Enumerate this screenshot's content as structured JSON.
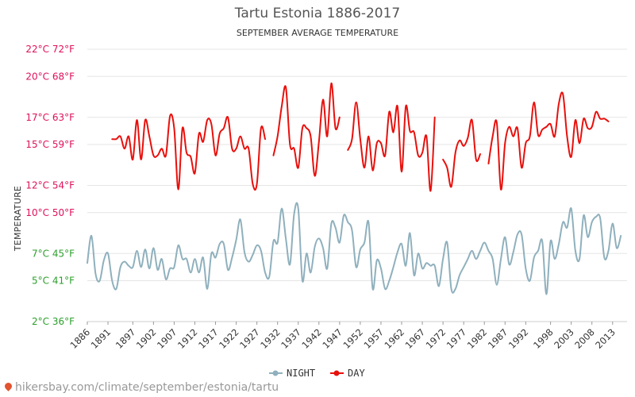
{
  "chart_data": {
    "type": "line",
    "title": "Tartu Estonia 1886-2017",
    "subtitle": "SEPTEMBER AVERAGE TEMPERATURE",
    "ylabel": "TEMPERATURE",
    "ylim": [
      2,
      22
    ],
    "y_ticks": [
      {
        "value": 2,
        "label": "2°C 36°F",
        "color": "#2ca02c"
      },
      {
        "value": 5,
        "label": "5°C 41°F",
        "color": "#2ca02c"
      },
      {
        "value": 7,
        "label": "7°C 45°F",
        "color": "#2ca02c"
      },
      {
        "value": 10,
        "label": "10°C 50°F",
        "color": "#e0105a"
      },
      {
        "value": 12,
        "label": "12°C 54°F",
        "color": "#e0105a"
      },
      {
        "value": 15,
        "label": "15°C 59°F",
        "color": "#e0105a"
      },
      {
        "value": 17,
        "label": "17°C 63°F",
        "color": "#e0105a"
      },
      {
        "value": 20,
        "label": "20°C 68°F",
        "color": "#e0105a"
      },
      {
        "value": 22,
        "label": "22°C 72°F",
        "color": "#e0105a"
      }
    ],
    "x_ticks": [
      1886,
      1891,
      1897,
      1902,
      1907,
      1912,
      1917,
      1922,
      1927,
      1932,
      1937,
      1942,
      1947,
      1952,
      1957,
      1962,
      1967,
      1972,
      1977,
      1982,
      1987,
      1992,
      1998,
      2003,
      2008,
      2013
    ],
    "grid": true,
    "legend_position": "bottom",
    "series": [
      {
        "name": "NIGHT",
        "color": "#8fb0bd",
        "points": [
          [
            1886,
            6.3
          ],
          [
            1887,
            8.3
          ],
          [
            1888,
            5.5
          ],
          [
            1889,
            5.0
          ],
          [
            1890,
            6.5
          ],
          [
            1891,
            7.0
          ],
          [
            1892,
            5.0
          ],
          [
            1893,
            4.4
          ],
          [
            1894,
            6.0
          ],
          [
            1895,
            6.4
          ],
          [
            1896,
            6.1
          ],
          [
            1897,
            6.0
          ],
          [
            1898,
            7.2
          ],
          [
            1899,
            6.0
          ],
          [
            1900,
            7.3
          ],
          [
            1901,
            5.9
          ],
          [
            1902,
            7.4
          ],
          [
            1903,
            5.8
          ],
          [
            1904,
            6.6
          ],
          [
            1905,
            5.1
          ],
          [
            1906,
            5.9
          ],
          [
            1907,
            6.0
          ],
          [
            1908,
            7.6
          ],
          [
            1909,
            6.6
          ],
          [
            1910,
            6.6
          ],
          [
            1911,
            5.6
          ],
          [
            1912,
            6.6
          ],
          [
            1913,
            5.6
          ],
          [
            1914,
            6.7
          ],
          [
            1915,
            4.4
          ],
          [
            1916,
            7.0
          ],
          [
            1917,
            6.7
          ],
          [
            1918,
            7.7
          ],
          [
            1919,
            7.7
          ],
          [
            1920,
            5.8
          ],
          [
            1921,
            6.7
          ],
          [
            1922,
            8.0
          ],
          [
            1923,
            9.5
          ],
          [
            1924,
            7.1
          ],
          [
            1925,
            6.4
          ],
          [
            1926,
            6.9
          ],
          [
            1927,
            7.6
          ],
          [
            1928,
            7.2
          ],
          [
            1929,
            5.6
          ],
          [
            1930,
            5.3
          ],
          [
            1931,
            7.9
          ],
          [
            1932,
            7.8
          ],
          [
            1933,
            10.3
          ],
          [
            1934,
            8.1
          ],
          [
            1935,
            6.2
          ],
          [
            1936,
            9.9
          ],
          [
            1937,
            10.3
          ],
          [
            1938,
            5.0
          ],
          [
            1939,
            7.0
          ],
          [
            1940,
            5.6
          ],
          [
            1941,
            7.5
          ],
          [
            1942,
            8.1
          ],
          [
            1943,
            7.4
          ],
          [
            1944,
            5.9
          ],
          [
            1945,
            9.2
          ],
          [
            1946,
            8.9
          ],
          [
            1947,
            7.8
          ],
          [
            1948,
            9.8
          ],
          [
            1949,
            9.3
          ],
          [
            1950,
            8.7
          ],
          [
            1951,
            6.0
          ],
          [
            1952,
            7.3
          ],
          [
            1953,
            7.8
          ],
          [
            1954,
            9.3
          ],
          [
            1955,
            4.4
          ],
          [
            1956,
            6.5
          ],
          [
            1957,
            5.9
          ],
          [
            1958,
            4.4
          ],
          [
            1959,
            5.0
          ],
          [
            1960,
            6.0
          ],
          [
            1961,
            7.1
          ],
          [
            1962,
            7.7
          ],
          [
            1963,
            6.1
          ],
          [
            1964,
            8.5
          ],
          [
            1965,
            5.4
          ],
          [
            1966,
            7.0
          ],
          [
            1967,
            5.9
          ],
          [
            1968,
            6.3
          ],
          [
            1969,
            6.1
          ],
          [
            1970,
            6.1
          ],
          [
            1971,
            4.6
          ],
          [
            1972,
            6.6
          ],
          [
            1973,
            7.8
          ],
          [
            1974,
            4.4
          ],
          [
            1975,
            4.4
          ],
          [
            1976,
            5.4
          ],
          [
            1977,
            6.0
          ],
          [
            1978,
            6.6
          ],
          [
            1979,
            7.2
          ],
          [
            1980,
            6.6
          ],
          [
            1981,
            7.2
          ],
          [
            1982,
            7.8
          ],
          [
            1983,
            7.2
          ],
          [
            1984,
            6.6
          ],
          [
            1985,
            4.7
          ],
          [
            1986,
            6.6
          ],
          [
            1987,
            8.2
          ],
          [
            1988,
            6.2
          ],
          [
            1989,
            7.1
          ],
          [
            1990,
            8.4
          ],
          [
            1991,
            8.4
          ],
          [
            1992,
            5.9
          ],
          [
            1993,
            5.0
          ],
          [
            1994,
            6.7
          ],
          [
            1995,
            7.2
          ],
          [
            1996,
            7.9
          ],
          [
            1997,
            4.0
          ],
          [
            1998,
            7.9
          ],
          [
            1999,
            6.6
          ],
          [
            2000,
            7.7
          ],
          [
            2001,
            9.3
          ],
          [
            2002,
            8.9
          ],
          [
            2003,
            10.3
          ],
          [
            2004,
            7.2
          ],
          [
            2005,
            6.6
          ],
          [
            2006,
            9.8
          ],
          [
            2007,
            8.2
          ],
          [
            2008,
            9.3
          ],
          [
            2009,
            9.7
          ],
          [
            2010,
            9.6
          ],
          [
            2011,
            6.7
          ],
          [
            2012,
            7.2
          ],
          [
            2013,
            9.2
          ],
          [
            2014,
            7.4
          ],
          [
            2015,
            8.3
          ]
        ]
      },
      {
        "name": "DAY",
        "color": "#e8100c",
        "points": [
          [
            1892,
            15.4
          ],
          [
            1893,
            15.4
          ],
          [
            1894,
            15.6
          ],
          [
            1895,
            14.7
          ],
          [
            1896,
            15.6
          ],
          [
            1897,
            13.9
          ],
          [
            1898,
            16.8
          ],
          [
            1899,
            13.9
          ],
          [
            1900,
            16.8
          ],
          [
            1901,
            15.6
          ],
          [
            1902,
            14.2
          ],
          [
            1903,
            14.2
          ],
          [
            1904,
            14.7
          ],
          [
            1905,
            14.2
          ],
          [
            1906,
            17.1
          ],
          [
            1907,
            16.2
          ],
          [
            1908,
            11.7
          ],
          [
            1909,
            16.2
          ],
          [
            1910,
            14.4
          ],
          [
            1911,
            14.1
          ],
          [
            1912,
            12.9
          ],
          [
            1913,
            15.8
          ],
          [
            1914,
            15.2
          ],
          [
            1915,
            16.8
          ],
          [
            1916,
            16.5
          ],
          [
            1917,
            14.2
          ],
          [
            1918,
            15.8
          ],
          [
            1919,
            16.2
          ],
          [
            1920,
            17.0
          ],
          [
            1921,
            14.7
          ],
          [
            1922,
            14.7
          ],
          [
            1923,
            15.6
          ],
          [
            1924,
            14.7
          ],
          [
            1925,
            14.7
          ],
          [
            1926,
            12.1
          ],
          [
            1927,
            12.1
          ],
          [
            1928,
            16.2
          ],
          [
            1929,
            15.4
          ],
          [
            1930,
            null
          ],
          [
            1931,
            14.2
          ],
          [
            1932,
            15.6
          ],
          [
            1933,
            17.8
          ],
          [
            1934,
            19.2
          ],
          [
            1935,
            15.0
          ],
          [
            1936,
            14.7
          ],
          [
            1937,
            13.3
          ],
          [
            1938,
            16.2
          ],
          [
            1939,
            16.2
          ],
          [
            1940,
            15.6
          ],
          [
            1941,
            12.7
          ],
          [
            1942,
            15.2
          ],
          [
            1943,
            18.3
          ],
          [
            1944,
            15.6
          ],
          [
            1945,
            19.5
          ],
          [
            1946,
            16.2
          ],
          [
            1947,
            17.0
          ],
          [
            1948,
            null
          ],
          [
            1949,
            14.6
          ],
          [
            1950,
            15.4
          ],
          [
            1951,
            18.1
          ],
          [
            1952,
            15.4
          ],
          [
            1953,
            13.3
          ],
          [
            1954,
            15.6
          ],
          [
            1955,
            13.1
          ],
          [
            1956,
            15.1
          ],
          [
            1957,
            15.1
          ],
          [
            1958,
            14.2
          ],
          [
            1959,
            17.4
          ],
          [
            1960,
            15.9
          ],
          [
            1961,
            17.8
          ],
          [
            1962,
            13.0
          ],
          [
            1963,
            17.8
          ],
          [
            1964,
            16.0
          ],
          [
            1965,
            15.9
          ],
          [
            1966,
            14.2
          ],
          [
            1967,
            14.4
          ],
          [
            1968,
            15.6
          ],
          [
            1969,
            11.6
          ],
          [
            1970,
            17.0
          ],
          [
            1971,
            null
          ],
          [
            1972,
            13.9
          ],
          [
            1973,
            13.3
          ],
          [
            1974,
            11.9
          ],
          [
            1975,
            14.4
          ],
          [
            1976,
            15.3
          ],
          [
            1977,
            14.9
          ],
          [
            1978,
            15.5
          ],
          [
            1979,
            16.8
          ],
          [
            1980,
            13.9
          ],
          [
            1981,
            14.3
          ],
          [
            1982,
            null
          ],
          [
            1983,
            13.6
          ],
          [
            1984,
            15.6
          ],
          [
            1985,
            16.6
          ],
          [
            1986,
            11.7
          ],
          [
            1987,
            15.1
          ],
          [
            1988,
            16.3
          ],
          [
            1989,
            15.6
          ],
          [
            1990,
            16.2
          ],
          [
            1991,
            13.3
          ],
          [
            1992,
            15.1
          ],
          [
            1993,
            15.6
          ],
          [
            1994,
            18.1
          ],
          [
            1995,
            15.7
          ],
          [
            1996,
            16.1
          ],
          [
            1997,
            16.3
          ],
          [
            1998,
            16.5
          ],
          [
            1999,
            15.6
          ],
          [
            2000,
            18.0
          ],
          [
            2001,
            18.7
          ],
          [
            2002,
            15.6
          ],
          [
            2003,
            14.1
          ],
          [
            2004,
            16.8
          ],
          [
            2005,
            15.1
          ],
          [
            2006,
            16.9
          ],
          [
            2007,
            16.2
          ],
          [
            2008,
            16.3
          ],
          [
            2009,
            17.4
          ],
          [
            2010,
            16.9
          ],
          [
            2011,
            16.9
          ],
          [
            2012,
            16.7
          ]
        ]
      }
    ]
  },
  "watermark": "hikersbay.com/climate/september/estonia/tartu"
}
